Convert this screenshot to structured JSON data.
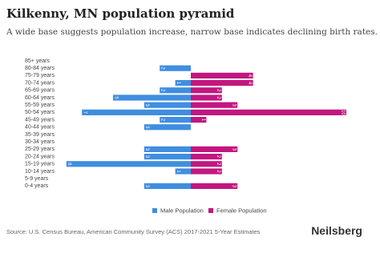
{
  "chart_data": {
    "type": "pyramid",
    "title": "Kilkenny, MN population pyramid",
    "subtitle": "A wide base suggests population increase, narrow base indicates declining birth rates.",
    "categories": [
      "85+ years",
      "80-84 years",
      "75-79 years",
      "70-74 years",
      "65-69 years",
      "60-64 years",
      "55-59 years",
      "50-54 years",
      "45-49 years",
      "40-44 years",
      "35-39 years",
      "30-34 years",
      "25-29 years",
      "20-24 years",
      "15-19 years",
      "10-14 years",
      "5-9 years",
      "0-4 years"
    ],
    "series": [
      {
        "name": "Male Population",
        "color": "#3f8ee0",
        "values": [
          0,
          2,
          0,
          1,
          2,
          5,
          3,
          7,
          2,
          3,
          0,
          0,
          3,
          3,
          8,
          1,
          0,
          3
        ]
      },
      {
        "name": "Female Population",
        "color": "#c2177f",
        "values": [
          0,
          0,
          4,
          4,
          2,
          2,
          3,
          10,
          1,
          0,
          0,
          0,
          3,
          2,
          2,
          2,
          0,
          3
        ]
      }
    ],
    "source": "Source: U.S. Census Bureau, American Community Survey (ACS) 2017-2021 5-Year Estimates",
    "brand": "Neilsberg"
  }
}
